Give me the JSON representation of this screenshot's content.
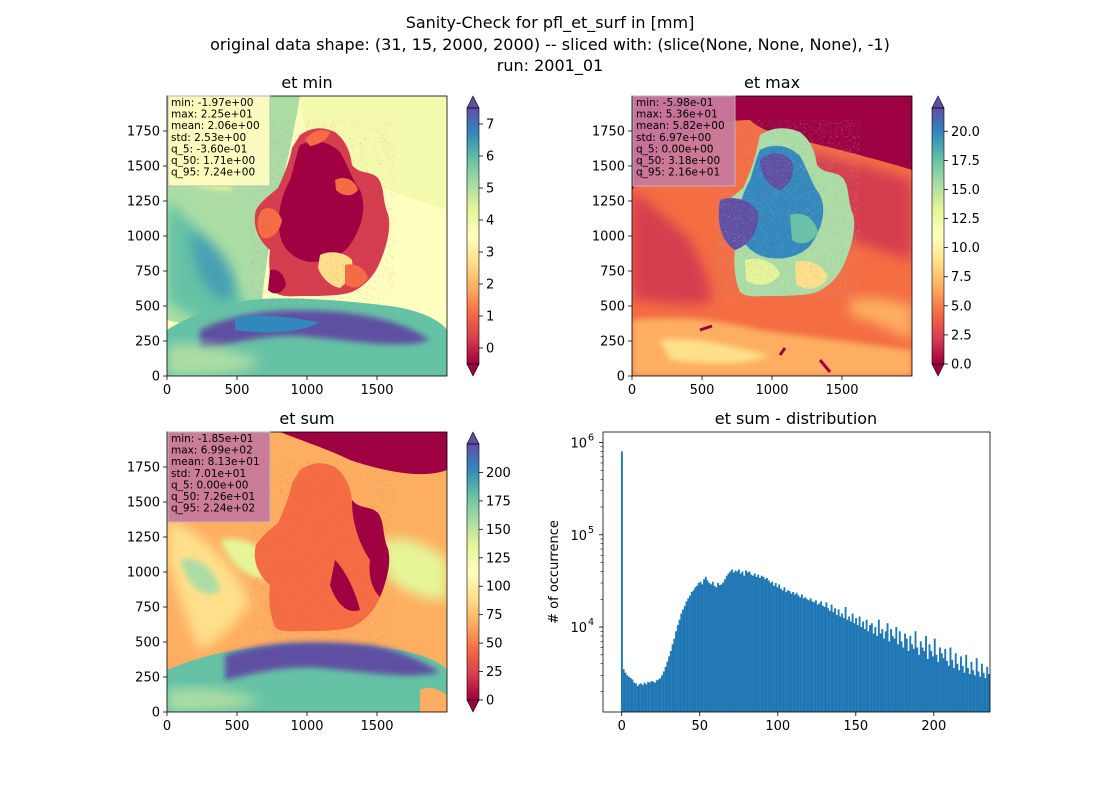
{
  "figure": {
    "title_lines": [
      "Sanity-Check for pfl_et_surf in [mm]",
      "original data shape: (31, 15, 2000, 2000) -- sliced with: (slice(None, None, None), -1)",
      "run: 2001_01"
    ]
  },
  "colors": {
    "histogram_bar": "#1f77b4",
    "stats_box_light": "#fdfdc0",
    "stats_box_dark": "#c97a9c",
    "sea_west": "#d8ee9c",
    "colormap": [
      "#9e0142",
      "#d53e4f",
      "#f46d43",
      "#fdae61",
      "#fee08b",
      "#ffffbf",
      "#e6f598",
      "#abdda4",
      "#66c2a5",
      "#3288bd",
      "#5e4fa2"
    ]
  },
  "chart_data": [
    {
      "type": "heatmap",
      "title": "et min",
      "xlim": [
        0,
        2000
      ],
      "ylim": [
        0,
        2000
      ],
      "x_ticks": [
        "0",
        "500",
        "1000",
        "1500"
      ],
      "y_ticks": [
        "0",
        "250",
        "500",
        "750",
        "1000",
        "1250",
        "1500",
        "1750"
      ],
      "colormap": "Spectral",
      "colorbar_range": [
        -0.5,
        7.5
      ],
      "colorbar_ticks": [
        "0",
        "1",
        "2",
        "3",
        "4",
        "5",
        "6",
        "7"
      ],
      "stats": [
        "min: -1.97e+00",
        "max: 2.25e+01",
        "mean: 2.06e+00",
        "std: 2.53e+00",
        "q_5: -3.60e-01",
        "q_50: 1.71e+00",
        "q_95: 7.24e+00"
      ],
      "stats_box_color": "light"
    },
    {
      "type": "heatmap",
      "title": "et max",
      "xlim": [
        0,
        2000
      ],
      "ylim": [
        0,
        2000
      ],
      "x_ticks": [
        "0",
        "500",
        "1000",
        "1500"
      ],
      "y_ticks": [
        "0",
        "250",
        "500",
        "750",
        "1000",
        "1250",
        "1500",
        "1750"
      ],
      "colormap": "Spectral",
      "colorbar_range": [
        0,
        22
      ],
      "colorbar_ticks": [
        "0.0",
        "2.5",
        "5.0",
        "7.5",
        "10.0",
        "12.5",
        "15.0",
        "17.5",
        "20.0"
      ],
      "stats": [
        "min: -5.98e-01",
        "max: 5.36e+01",
        "mean: 5.82e+00",
        "std: 6.97e+00",
        "q_5: 0.00e+00",
        "q_50: 3.18e+00",
        "q_95: 2.16e+01"
      ],
      "stats_box_color": "dark"
    },
    {
      "type": "heatmap",
      "title": "et sum",
      "xlim": [
        0,
        2000
      ],
      "ylim": [
        0,
        2000
      ],
      "x_ticks": [
        "0",
        "500",
        "1000",
        "1500"
      ],
      "y_ticks": [
        "0",
        "250",
        "500",
        "750",
        "1000",
        "1250",
        "1500",
        "1750"
      ],
      "colormap": "Spectral",
      "colorbar_range": [
        0,
        225
      ],
      "colorbar_ticks": [
        "0",
        "25",
        "50",
        "75",
        "100",
        "125",
        "150",
        "175",
        "200"
      ],
      "stats": [
        "min: -1.85e+01",
        "max: 6.99e+02",
        "mean: 8.13e+01",
        "std: 7.01e+01",
        "q_5: 0.00e+00",
        "q_50: 7.26e+01",
        "q_95: 2.24e+02"
      ],
      "stats_box_color": "dark"
    },
    {
      "type": "bar",
      "title": "et sum - distribution",
      "ylabel": "# of occurrence",
      "xlabel": "",
      "yscale": "log",
      "xlim": [
        -12,
        236
      ],
      "ylim": [
        1200,
        1300000
      ],
      "x_ticks": [
        "0",
        "50",
        "100",
        "150",
        "200"
      ],
      "y_ticks": [
        {
          "base": "10",
          "exp": "4",
          "value": 10000
        },
        {
          "base": "10",
          "exp": "5",
          "value": 100000
        },
        {
          "base": "10",
          "exp": "6",
          "value": 1000000
        }
      ],
      "bin_width": 1.12,
      "bins_start": -0.5,
      "counts": [
        800000,
        3500,
        3200,
        3000,
        2900,
        2800,
        2700,
        2500,
        2450,
        2300,
        2400,
        2450,
        2350,
        2500,
        2400,
        2550,
        2500,
        2600,
        2550,
        2500,
        2650,
        2700,
        2800,
        3000,
        3300,
        3700,
        4200,
        4800,
        5500,
        6500,
        7500,
        9000,
        10500,
        12000,
        14000,
        15500,
        17000,
        19000,
        20500,
        22000,
        24000,
        25000,
        27000,
        28000,
        30000,
        31000,
        29000,
        33000,
        35000,
        32000,
        30000,
        29000,
        31000,
        28000,
        27000,
        30000,
        28500,
        29000,
        30500,
        33000,
        36000,
        38000,
        40000,
        42000,
        39000,
        41000,
        40000,
        42000,
        38000,
        40000,
        36000,
        41000,
        39000,
        40000,
        37000,
        36000,
        38000,
        35000,
        37000,
        34000,
        36000,
        35000,
        33000,
        34000,
        32000,
        30000,
        31000,
        28000,
        30000,
        27000,
        29000,
        26000,
        25000,
        27000,
        24000,
        25000,
        24500,
        23000,
        24000,
        22500,
        23500,
        22000,
        21000,
        22500,
        20500,
        21000,
        20000,
        19500,
        20500,
        19000,
        18500,
        19500,
        17500,
        18000,
        19000,
        17000,
        16500,
        18500,
        16000,
        15000,
        17500,
        14500,
        16000,
        13500,
        15500,
        13000,
        14000,
        12500,
        16500,
        12000,
        13000,
        11500,
        14000,
        11000,
        12500,
        10500,
        13000,
        10000,
        11500,
        9500,
        12000,
        9000,
        10500,
        11000,
        8500,
        10000,
        8000,
        12000,
        8500,
        9500,
        7500,
        9000,
        11000,
        7000,
        9500,
        8000,
        7500,
        10000,
        6500,
        9000,
        7000,
        6000,
        8500,
        7500,
        5500,
        8000,
        6500,
        5800,
        9000,
        6000,
        5000,
        7000,
        6000,
        5500,
        8000,
        4500,
        6500,
        5500,
        4800,
        7500,
        5000,
        4200,
        6000,
        5200,
        4600,
        5800,
        4300,
        3800,
        6000,
        4400,
        3600,
        5200,
        4000,
        3400,
        4800,
        3800,
        3200,
        5000,
        3600,
        3100,
        4200,
        3400,
        3000,
        4600,
        3300,
        2900,
        4000,
        3200,
        2800,
        3700,
        3100,
        2700,
        3500,
        3000,
        2600,
        3300,
        2800,
        2500,
        3100
      ]
    }
  ]
}
